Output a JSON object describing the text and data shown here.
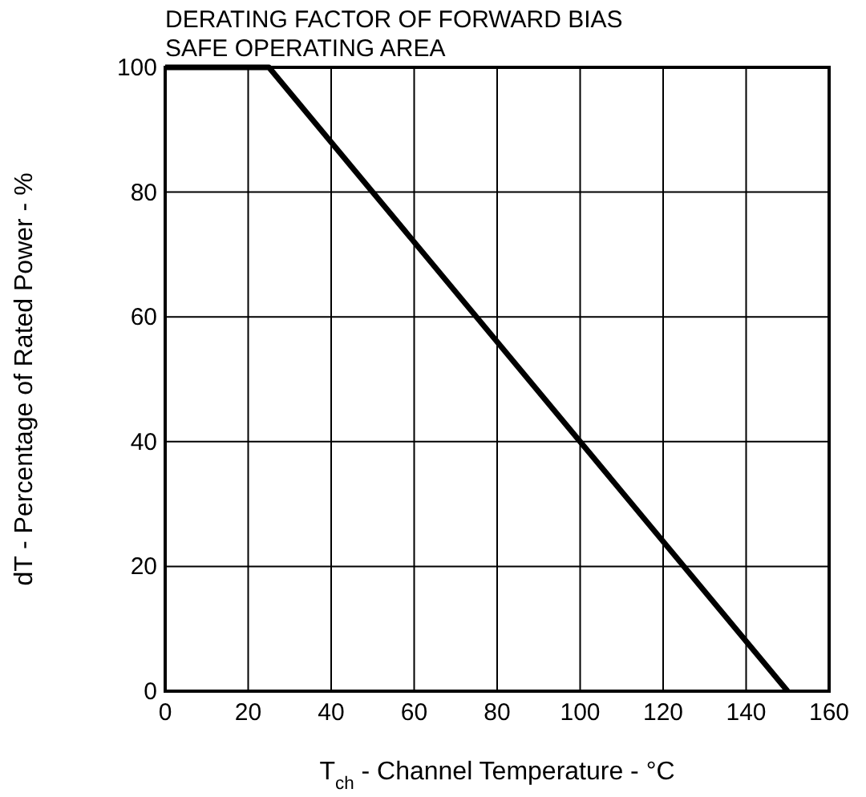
{
  "chart_data": {
    "type": "line",
    "title": "DERATING FACTOR OF FORWARD BIAS\nSAFE OPERATING AREA",
    "xlabel": "T$_{ch}$ - Channel Temperature - °C",
    "ylabel": "dT - Percentage of Rated Power - %",
    "x": [
      0,
      25,
      150
    ],
    "series": [
      {
        "color": "#000000",
        "values": [
          100,
          100,
          0
        ]
      }
    ],
    "xlim": [
      0,
      160
    ],
    "ylim": [
      0,
      100
    ],
    "xticks": [
      0,
      20,
      40,
      60,
      80,
      100,
      120,
      140,
      160
    ],
    "yticks": [
      0,
      20,
      40,
      60,
      80,
      100
    ],
    "grid": true,
    "marker": "none",
    "line_style": "solid"
  }
}
